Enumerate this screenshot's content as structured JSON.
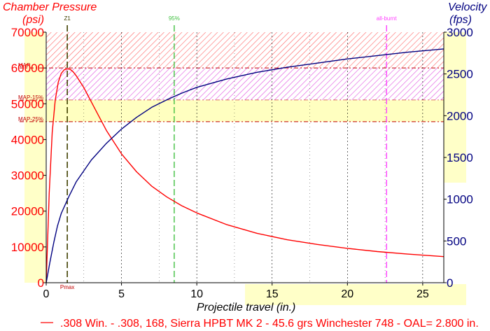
{
  "chart_data": {
    "type": "line",
    "left_axis": {
      "title_line1": "Chamber Pressure",
      "title_line2": "(psi)",
      "ylim": [
        0,
        70000
      ],
      "ticks": [
        "0",
        "10000",
        "20000",
        "30000",
        "40000",
        "50000",
        "60000",
        "70000"
      ]
    },
    "right_axis": {
      "title_line1": "Velocity",
      "title_line2": "(fps)",
      "ylim": [
        0,
        3000
      ],
      "ticks": [
        "0",
        "500",
        "1000",
        "1500",
        "2000",
        "2500",
        "3000"
      ]
    },
    "x_axis": {
      "title": "Projectile travel (in.)",
      "xlim": [
        0,
        26.4
      ],
      "ticks": [
        "0",
        "5",
        "10",
        "15",
        "20",
        "25"
      ]
    },
    "grid": true,
    "bands": [
      {
        "label": "MAP",
        "from": 60000,
        "to": 70000
      },
      {
        "label": "MAP-15%",
        "from": 51000,
        "to": 60000
      },
      {
        "label": "MAP-25%",
        "from": 45000,
        "to": 51000
      }
    ],
    "markers": [
      {
        "label": "Z1",
        "x": 1.4
      },
      {
        "label": "95%",
        "x": 8.5
      },
      {
        "label": "all-burnt",
        "x": 22.6
      },
      {
        "label": "Pmax",
        "x": 1.4
      }
    ],
    "series": [
      {
        "name": "pressure",
        "axis": "left",
        "x": [
          0,
          0.2,
          0.4,
          0.6,
          0.8,
          1.0,
          1.2,
          1.4,
          1.6,
          1.8,
          2.0,
          2.5,
          3.0,
          3.5,
          4.0,
          5.0,
          6.0,
          7.0,
          8.0,
          9.0,
          10.0,
          12.0,
          14.0,
          16.0,
          18.0,
          20.0,
          22.0,
          24.0,
          26.4
        ],
        "values": [
          0,
          25000,
          42000,
          51000,
          56000,
          58500,
          59500,
          59800,
          59600,
          58900,
          57800,
          54500,
          50500,
          46500,
          42500,
          36000,
          31000,
          27000,
          24000,
          21500,
          19500,
          16200,
          13800,
          12000,
          10700,
          9600,
          8700,
          8000,
          7300
        ]
      },
      {
        "name": "velocity",
        "axis": "right",
        "x": [
          0,
          0.25,
          0.5,
          0.75,
          1.0,
          1.5,
          2.0,
          3.0,
          4.0,
          5.0,
          6.0,
          7.0,
          8.0,
          9.0,
          10.0,
          12.0,
          14.0,
          16.0,
          18.0,
          20.0,
          22.0,
          24.0,
          26.4
        ],
        "values": [
          0,
          250,
          480,
          680,
          830,
          1030,
          1210,
          1470,
          1670,
          1840,
          1980,
          2100,
          2190,
          2270,
          2340,
          2440,
          2520,
          2580,
          2630,
          2680,
          2720,
          2760,
          2800
        ]
      }
    ],
    "legend": ".308 Win. - .308, 168, Sierra HPBT MK 2 - 45.6 grs Winchester 748 - OAL= 2.800 in."
  },
  "colors": {
    "pressure": "#ff0000",
    "velocity": "#000080",
    "band_map": "#ff4040",
    "band_map15": "#ff40ff",
    "band_map25": "#ffffc0",
    "yellow_hl": "#ffffc8",
    "z1": "#404000",
    "p95": "#40c040",
    "allburnt": "#ff40ff"
  }
}
